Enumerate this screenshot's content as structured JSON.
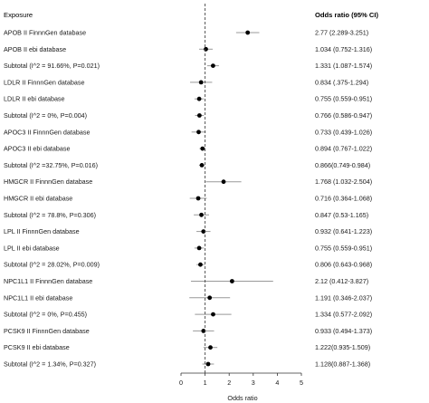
{
  "chart_data": {
    "type": "forest",
    "header": {
      "left": "Exposure",
      "right": "Odds ratio (95% CI)"
    },
    "xlabel": "Odds ratio",
    "xlim": [
      0,
      5
    ],
    "xticks": [
      0,
      1,
      2,
      3,
      4,
      5
    ],
    "reference_line": 1,
    "rows": [
      {
        "label": "APOB II FinnnGen database",
        "or": 2.77,
        "lo": 2.289,
        "hi": 3.251,
        "ci_text": "2.77 (2.289-3.251)"
      },
      {
        "label": "APOB II ebi database",
        "or": 1.034,
        "lo": 0.752,
        "hi": 1.316,
        "ci_text": "1.034 (0.752-1.316)"
      },
      {
        "label": "Subtotal  (I^2 = 91.66%, P=0.021)",
        "or": 1.331,
        "lo": 1.087,
        "hi": 1.574,
        "ci_text": "1.331 (1.087-1.574)"
      },
      {
        "label": "LDLR II FinnnGen database",
        "or": 0.834,
        "lo": 0.375,
        "hi": 1.294,
        "ci_text": "0.834 (.375-1.294)"
      },
      {
        "label": "LDLR II ebi database",
        "or": 0.755,
        "lo": 0.559,
        "hi": 0.951,
        "ci_text": "0.755 (0.559-0.951)"
      },
      {
        "label": "Subtotal  (I^2 = 0%, P=0.004)",
        "or": 0.766,
        "lo": 0.586,
        "hi": 0.947,
        "ci_text": "0.766 (0.586-0.947)"
      },
      {
        "label": "APOC3 II FinnnGen database",
        "or": 0.733,
        "lo": 0.439,
        "hi": 1.026,
        "ci_text": "0.733 (0.439-1.026)"
      },
      {
        "label": "APOC3 II ebi database",
        "or": 0.894,
        "lo": 0.767,
        "hi": 1.022,
        "ci_text": "0.894 (0.767-1.022)"
      },
      {
        "label": "Subtotal  (I^2 =32.75%, P=0.016)",
        "or": 0.866,
        "lo": 0.749,
        "hi": 0.984,
        "ci_text": "0.866(0.749-0.984)"
      },
      {
        "label": "HMGCR II FinnnGen database",
        "or": 1.768,
        "lo": 1.032,
        "hi": 2.504,
        "ci_text": "1.768 (1.032-2.504)"
      },
      {
        "label": "HMGCR II ebi database",
        "or": 0.716,
        "lo": 0.364,
        "hi": 1.068,
        "ci_text": "0.716 (0.364-1.068)"
      },
      {
        "label": "Subtotal  (I^2 = 78.8%, P=0.306)",
        "or": 0.847,
        "lo": 0.53,
        "hi": 1.165,
        "ci_text": "0.847 (0.53-1.165)"
      },
      {
        "label": "LPL II FinnnGen database",
        "or": 0.932,
        "lo": 0.641,
        "hi": 1.223,
        "ci_text": "0.932 (0.641-1.223)"
      },
      {
        "label": "LPL II ebi database",
        "or": 0.755,
        "lo": 0.559,
        "hi": 0.951,
        "ci_text": "0.755 (0.559-0.951)"
      },
      {
        "label": "Subtotal  (I^2 = 28.02%, P=0.009)",
        "or": 0.806,
        "lo": 0.643,
        "hi": 0.968,
        "ci_text": "0.806 (0.643-0.968)"
      },
      {
        "label": "NPC1L1 II FinnnGen database",
        "or": 2.12,
        "lo": 0.412,
        "hi": 3.827,
        "ci_text": "2.12 (0.412-3.827)"
      },
      {
        "label": "NPC1L1 II ebi database",
        "or": 1.191,
        "lo": 0.346,
        "hi": 2.037,
        "ci_text": "1.191 (0.346-2.037)"
      },
      {
        "label": "Subtotal  (I^2 = 0%, P=0.455)",
        "or": 1.334,
        "lo": 0.577,
        "hi": 2.092,
        "ci_text": "1.334 (0.577-2.092)"
      },
      {
        "label": "PCSK9 II FinnnGen database",
        "or": 0.933,
        "lo": 0.494,
        "hi": 1.373,
        "ci_text": "0.933 (0.494-1.373)"
      },
      {
        "label": "PCSK9 II ebi database",
        "or": 1.222,
        "lo": 0.935,
        "hi": 1.509,
        "ci_text": "1.222(0.935-1.509)"
      },
      {
        "label": "Subtotal  (I^2 = 1.34%, P=0.327)",
        "or": 1.128,
        "lo": 0.887,
        "hi": 1.368,
        "ci_text": "1.128(0.887-1.368)"
      }
    ]
  }
}
